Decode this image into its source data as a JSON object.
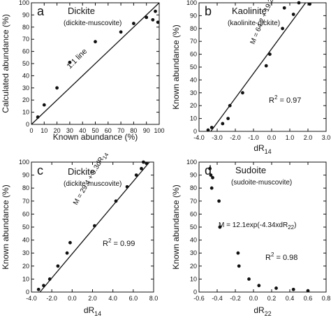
{
  "chart_data": [
    {
      "type": "scatter",
      "panel_letter": "a",
      "title": "Dickite",
      "subtitle": "(dickite-muscovite)",
      "xlabel": "Known abundance (%)",
      "ylabel": "Calculated abundance (%)",
      "xlim": [
        0,
        100
      ],
      "ylim": [
        0,
        100
      ],
      "xticks": [
        0,
        10,
        20,
        30,
        40,
        50,
        60,
        70,
        80,
        90,
        100
      ],
      "yticks": [
        0,
        10,
        20,
        30,
        40,
        50,
        60,
        70,
        80,
        90,
        100
      ],
      "line": {
        "type": "identity",
        "from": [
          0,
          0
        ],
        "to": [
          100,
          100
        ]
      },
      "line_label": "1:1 line",
      "annotation": "",
      "series": [
        {
          "x": [
            5,
            10,
            20,
            30,
            50,
            70,
            80,
            90,
            95,
            97,
            99
          ],
          "y": [
            6,
            16,
            30,
            51,
            68,
            76,
            83,
            88,
            86,
            93,
            84
          ]
        }
      ]
    },
    {
      "type": "scatter",
      "panel_letter": "b",
      "title": "Kaolinite",
      "subtitle": "(kaolinite-dickite)",
      "xlabel": "dR",
      "xlabel_sub": "14",
      "ylabel": "Known abundance (%)",
      "xlim": [
        -4.0,
        3.0
      ],
      "ylim": [
        0,
        100
      ],
      "xticks": [
        -4.0,
        -3.0,
        -2.0,
        -1.0,
        0.0,
        1.0,
        2.0,
        3.0
      ],
      "yticks": [
        0,
        10,
        20,
        30,
        40,
        50,
        60,
        70,
        80,
        90,
        100
      ],
      "line": {
        "type": "linear",
        "from": [
          -3.35,
          0
        ],
        "to": [
          1.87,
          100
        ]
      },
      "line_label": "M = 64.2 + 19.2dR",
      "line_label_sub": "14",
      "annotation": "R",
      "annotation_sup": "2",
      "annotation_tail": " = 0.97",
      "series": [
        {
          "x": [
            -3.5,
            -3.3,
            -2.7,
            -2.4,
            -2.3,
            -1.6,
            -0.3,
            -0.1,
            0.6,
            0.7,
            1.2,
            1.5,
            2.1
          ],
          "y": [
            1,
            3,
            6,
            10,
            20,
            30,
            51,
            60,
            80,
            96,
            91,
            100,
            99
          ]
        }
      ]
    },
    {
      "type": "scatter",
      "panel_letter": "c",
      "title": "Dickite",
      "subtitle": "(dickite-muscovite)",
      "xlabel": "dR",
      "xlabel_sub": "14",
      "ylabel": "Known abundance (%)",
      "xlim": [
        -4.0,
        8.0
      ],
      "ylim": [
        0,
        100
      ],
      "xticks": [
        -4.0,
        -2.0,
        0.0,
        2.0,
        4.0,
        6.0,
        8.0
      ],
      "yticks": [
        0,
        10,
        20,
        30,
        40,
        50,
        60,
        70,
        80,
        90,
        100
      ],
      "line": {
        "type": "linear",
        "from": [
          -3.16,
          0
        ],
        "to": [
          7.59,
          100
        ]
      },
      "line_label": "M = 29.4 + 9.3dR",
      "line_label_sub": "14",
      "annotation": "R",
      "annotation_sup": "2",
      "annotation_tail": " = 0.99",
      "series": [
        {
          "x": [
            -3.3,
            -2.8,
            -2.2,
            -1.4,
            -0.5,
            -0.2,
            2.2,
            4.3,
            5.4,
            6.3,
            6.8,
            7.0,
            7.3
          ],
          "y": [
            2,
            5,
            10,
            20,
            30,
            38,
            51,
            70,
            81,
            90,
            95,
            100,
            99
          ]
        }
      ]
    },
    {
      "type": "scatter",
      "panel_letter": "d",
      "title": "Sudoite",
      "subtitle": "(sudoite-muscovite)",
      "xlabel": "dR",
      "xlabel_sub": "22",
      "ylabel": "Known abundance (%)",
      "xlim": [
        -0.6,
        0.8
      ],
      "ylim": [
        0,
        100
      ],
      "xticks": [
        -0.6,
        -0.4,
        -0.2,
        0.0,
        0.2,
        0.4,
        0.6,
        0.8
      ],
      "yticks": [
        0,
        10,
        20,
        30,
        40,
        50,
        60,
        70,
        80,
        90,
        100
      ],
      "line": null,
      "line_label": "M = 12.1exp(-4.34xdR",
      "line_label_sub": "22",
      "line_label_tail": ")",
      "annotation": "R",
      "annotation_sup": "2",
      "annotation_tail": " = 0.98",
      "series": [
        {
          "x": [
            -0.48,
            -0.47,
            -0.46,
            -0.45,
            -0.38,
            -0.37,
            -0.17,
            -0.16,
            -0.05,
            0.06,
            0.25,
            0.44,
            0.6
          ],
          "y": [
            95,
            90,
            80,
            88,
            70,
            50,
            30,
            20,
            10,
            5,
            3,
            2,
            1
          ]
        }
      ]
    }
  ]
}
